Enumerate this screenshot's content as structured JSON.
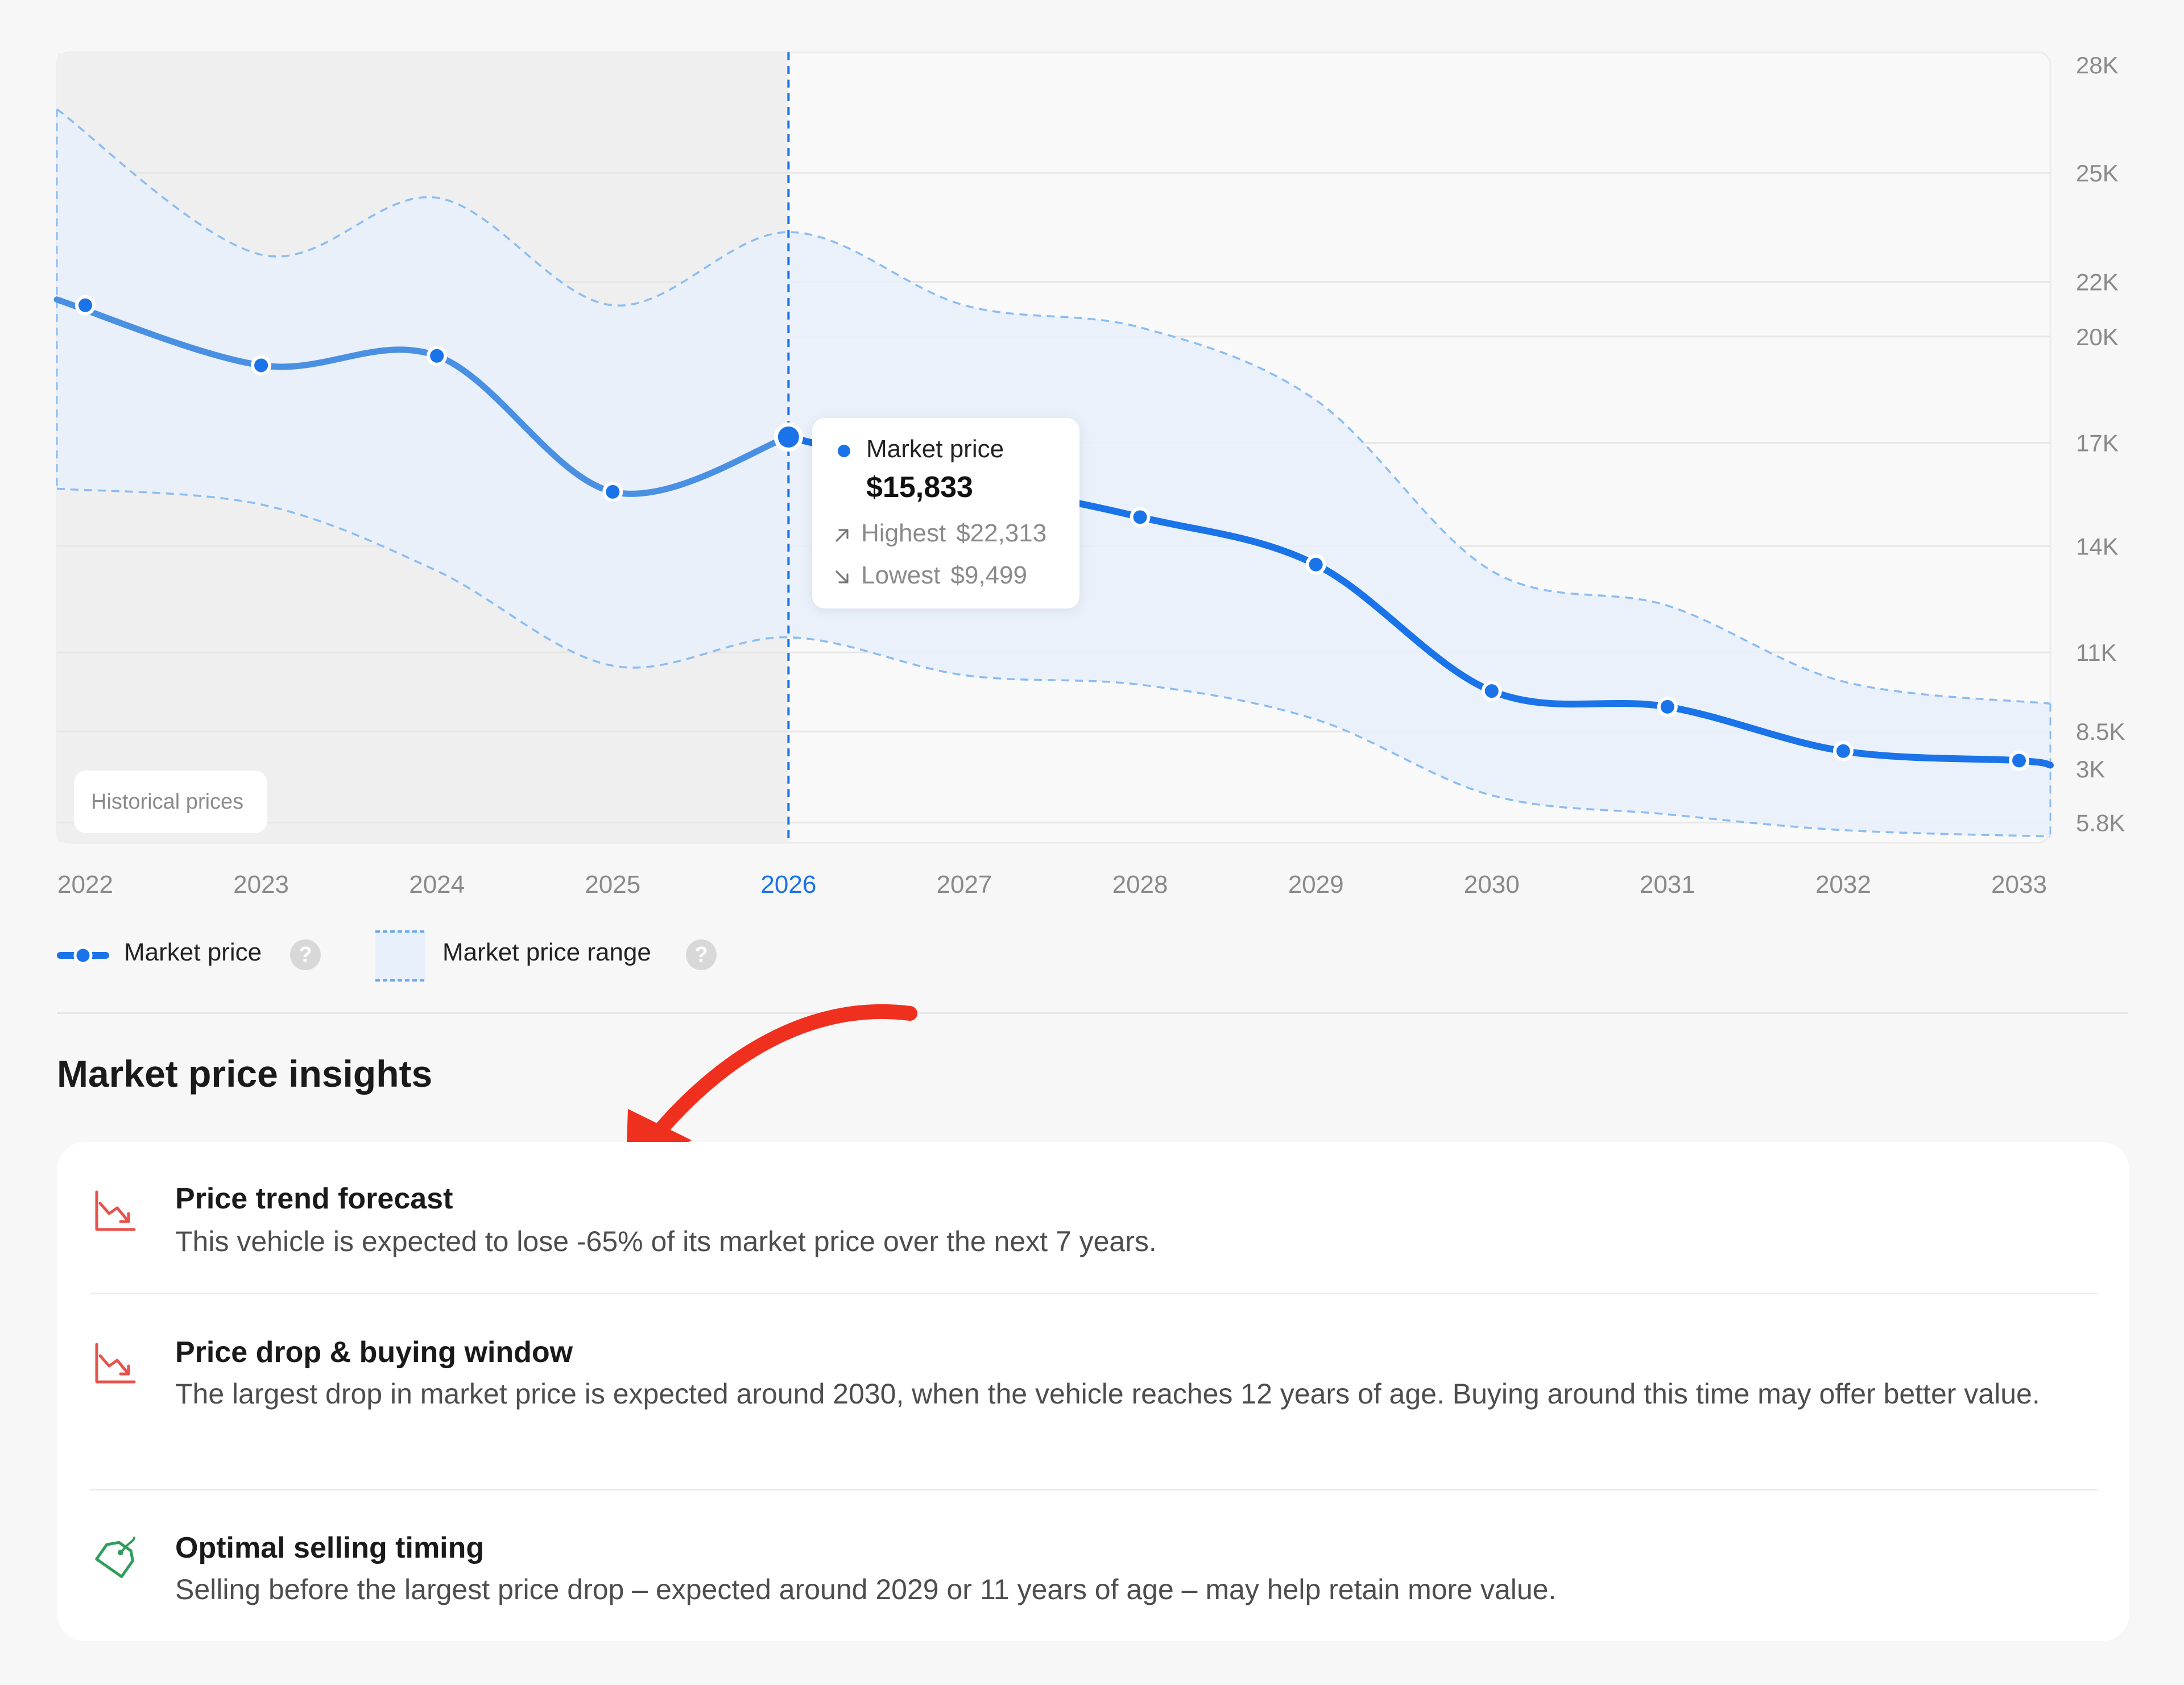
{
  "chart_data": {
    "type": "line",
    "x": [
      "2022",
      "2023",
      "2024",
      "2025",
      "2026",
      "2027",
      "2028",
      "2029",
      "2030",
      "2031",
      "2032",
      "2033"
    ],
    "highlighted_x": "2026",
    "y_ticks": [
      "28K",
      "25K",
      "22K",
      "20K",
      "17K",
      "14K",
      "11K",
      "8.5K",
      "5.8K",
      "3K"
    ],
    "ylim": [
      3000,
      28000
    ],
    "grid": true,
    "series": [
      {
        "name": "Market price",
        "values": [
          20000,
          18100,
          18400,
          14100,
          15833,
          14500,
          13300,
          11800,
          7800,
          7300,
          5900,
          5600
        ]
      },
      {
        "name": "Market price range",
        "upper": [
          26200,
          21600,
          23400,
          20000,
          22313,
          20000,
          19300,
          17000,
          11600,
          10500,
          8100,
          7400
        ],
        "lower": [
          14200,
          13700,
          11600,
          8600,
          9499,
          8300,
          8000,
          6900,
          4500,
          3900,
          3400,
          3200
        ]
      }
    ],
    "region_label": "Historical prices",
    "colors": {
      "line": "#1a73e8",
      "historical_line": "#4a90e2",
      "band_fill": "#e8f0fb",
      "historical_bg": "#efefef",
      "band_dash": "#8bbdf2"
    }
  },
  "tooltip": {
    "label": "Market price",
    "value": "$15,833",
    "highest_label": "Highest",
    "highest_value": "$22,313",
    "lowest_label": "Lowest",
    "lowest_value": "$9,499"
  },
  "legend": {
    "market_price": "Market price",
    "market_price_range": "Market price range",
    "help": "?"
  },
  "insights": {
    "title": "Market price insights",
    "items": [
      {
        "icon": "trend-down-icon",
        "title": "Price trend forecast",
        "text": "This vehicle is expected to lose -65% of its market price over the next 7 years."
      },
      {
        "icon": "trend-down-icon",
        "title": "Price drop & buying window",
        "text": "The largest drop in market price is expected around 2030, when the vehicle reaches 12 years of age. Buying around this time may offer better value."
      },
      {
        "icon": "tag-icon",
        "title": "Optimal selling timing",
        "text": "Selling before the largest price drop – expected around 2029 or 11 years of age – may help retain more value."
      }
    ]
  },
  "annotation": {
    "icon": "red-arrow-icon",
    "color": "#f0301e"
  }
}
